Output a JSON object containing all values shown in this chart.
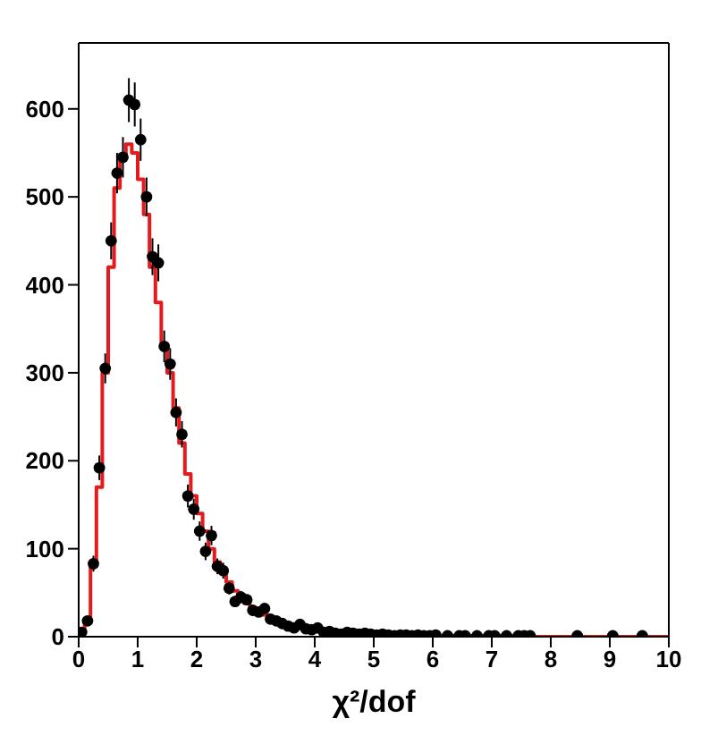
{
  "chart_data": {
    "type": "histogram",
    "xlabel": "χ²/dof",
    "xlim": [
      0,
      10
    ],
    "xticks": [
      0,
      1,
      2,
      3,
      4,
      5,
      6,
      7,
      8,
      9,
      10
    ],
    "ylim": [
      0,
      675
    ],
    "yticks": [
      0,
      100,
      200,
      300,
      400,
      500,
      600
    ],
    "legend": false,
    "series": [
      {
        "color": "#e41a1c",
        "bins": [
          0,
          0.1,
          0.2,
          0.3,
          0.4,
          0.5,
          0.6,
          0.7,
          0.8,
          0.9,
          1,
          1.1,
          1.2,
          1.3,
          1.4,
          1.5,
          1.6,
          1.7,
          1.8,
          1.9,
          2,
          2.1,
          2.2,
          2.3,
          2.4,
          2.5,
          2.6,
          2.7,
          2.8,
          2.9,
          3,
          3.1,
          3.2,
          3.3,
          3.4,
          3.5,
          3.6,
          3.7,
          3.8,
          3.9,
          4,
          4.1,
          4.2,
          4.3,
          4.4,
          4.5,
          4.6,
          4.7,
          4.8,
          4.9,
          5,
          5.1,
          5.2,
          5.3,
          5.4,
          5.5,
          5.6,
          5.7,
          5.8,
          5.9,
          6,
          6.1,
          6.2,
          6.3,
          6.4,
          6.5,
          6.6,
          6.7,
          6.8,
          6.9,
          7,
          7.1,
          7.2,
          7.3,
          7.4,
          7.5,
          7.6,
          7.7,
          7.8,
          7.9,
          8,
          8.1,
          8.2,
          8.3,
          8.4,
          8.5,
          8.6,
          8.7,
          8.8,
          8.9,
          9,
          9.1,
          9.2,
          9.3,
          9.4,
          9.5,
          9.6,
          9.7,
          9.8,
          9.9,
          10
        ],
        "values": [
          5,
          20,
          80,
          170,
          300,
          420,
          510,
          545,
          560,
          550,
          520,
          480,
          420,
          380,
          330,
          300,
          260,
          220,
          185,
          160,
          140,
          120,
          100,
          85,
          75,
          62,
          52,
          45,
          38,
          33,
          28,
          25,
          22,
          20,
          17,
          15,
          13,
          11,
          10,
          9,
          8,
          7,
          6,
          5,
          5,
          4,
          4,
          3,
          3,
          3,
          3,
          2,
          2,
          2,
          2,
          2,
          2,
          1,
          1,
          1,
          1,
          1,
          1,
          1,
          1,
          1,
          1,
          1,
          1,
          1,
          1,
          1,
          1,
          1,
          0,
          0,
          0,
          0,
          0,
          0,
          0,
          0,
          0,
          0,
          0,
          0,
          0,
          0,
          0,
          0,
          0,
          0,
          0,
          0,
          0,
          0,
          0,
          0,
          0,
          0
        ]
      },
      {
        "type": "scatter",
        "color": "#000000",
        "marker": "circle",
        "x": [
          0.05,
          0.15,
          0.25,
          0.35,
          0.45,
          0.55,
          0.65,
          0.75,
          0.85,
          0.95,
          1.05,
          1.15,
          1.25,
          1.35,
          1.45,
          1.55,
          1.65,
          1.75,
          1.85,
          1.95,
          2.05,
          2.15,
          2.25,
          2.35,
          2.45,
          2.55,
          2.65,
          2.75,
          2.85,
          2.95,
          3.05,
          3.15,
          3.25,
          3.35,
          3.45,
          3.55,
          3.65,
          3.75,
          3.85,
          3.95,
          4.05,
          4.15,
          4.25,
          4.35,
          4.45,
          4.55,
          4.65,
          4.75,
          4.85,
          4.95,
          5.05,
          5.15,
          5.25,
          5.35,
          5.45,
          5.55,
          5.65,
          5.75,
          5.85,
          5.95,
          6.05,
          6.25,
          6.45,
          6.55,
          6.75,
          6.95,
          7.05,
          7.25,
          7.45,
          7.55,
          7.65,
          8.45,
          9.05,
          9.55
        ],
        "values": [
          5,
          18,
          83,
          192,
          305,
          450,
          527,
          545,
          610,
          605,
          565,
          500,
          432,
          425,
          330,
          310,
          255,
          230,
          160,
          145,
          120,
          97,
          115,
          80,
          75,
          55,
          40,
          45,
          42,
          30,
          28,
          32,
          20,
          18,
          15,
          12,
          10,
          14,
          9,
          8,
          10,
          5,
          6,
          4,
          3,
          5,
          4,
          3,
          4,
          3,
          2,
          3,
          2,
          1,
          2,
          2,
          1,
          2,
          1,
          1,
          2,
          1,
          1,
          1,
          1,
          1,
          1,
          1,
          1,
          1,
          1,
          1,
          1,
          1
        ],
        "errors": [
          2,
          4,
          9,
          14,
          17,
          21,
          23,
          23,
          25,
          25,
          24,
          22,
          21,
          21,
          18,
          18,
          16,
          15,
          13,
          12,
          11,
          10,
          11,
          9,
          9,
          7,
          6,
          7,
          6,
          5,
          5,
          6,
          4,
          4,
          4,
          3,
          3,
          4,
          3,
          3,
          3,
          2,
          2,
          2,
          2,
          2,
          2,
          2,
          2,
          2,
          1,
          2,
          1,
          1,
          1,
          1,
          1,
          1,
          1,
          1,
          1,
          1,
          1,
          1,
          1,
          1,
          1,
          1,
          1,
          1,
          1,
          1,
          1,
          1
        ]
      }
    ]
  }
}
